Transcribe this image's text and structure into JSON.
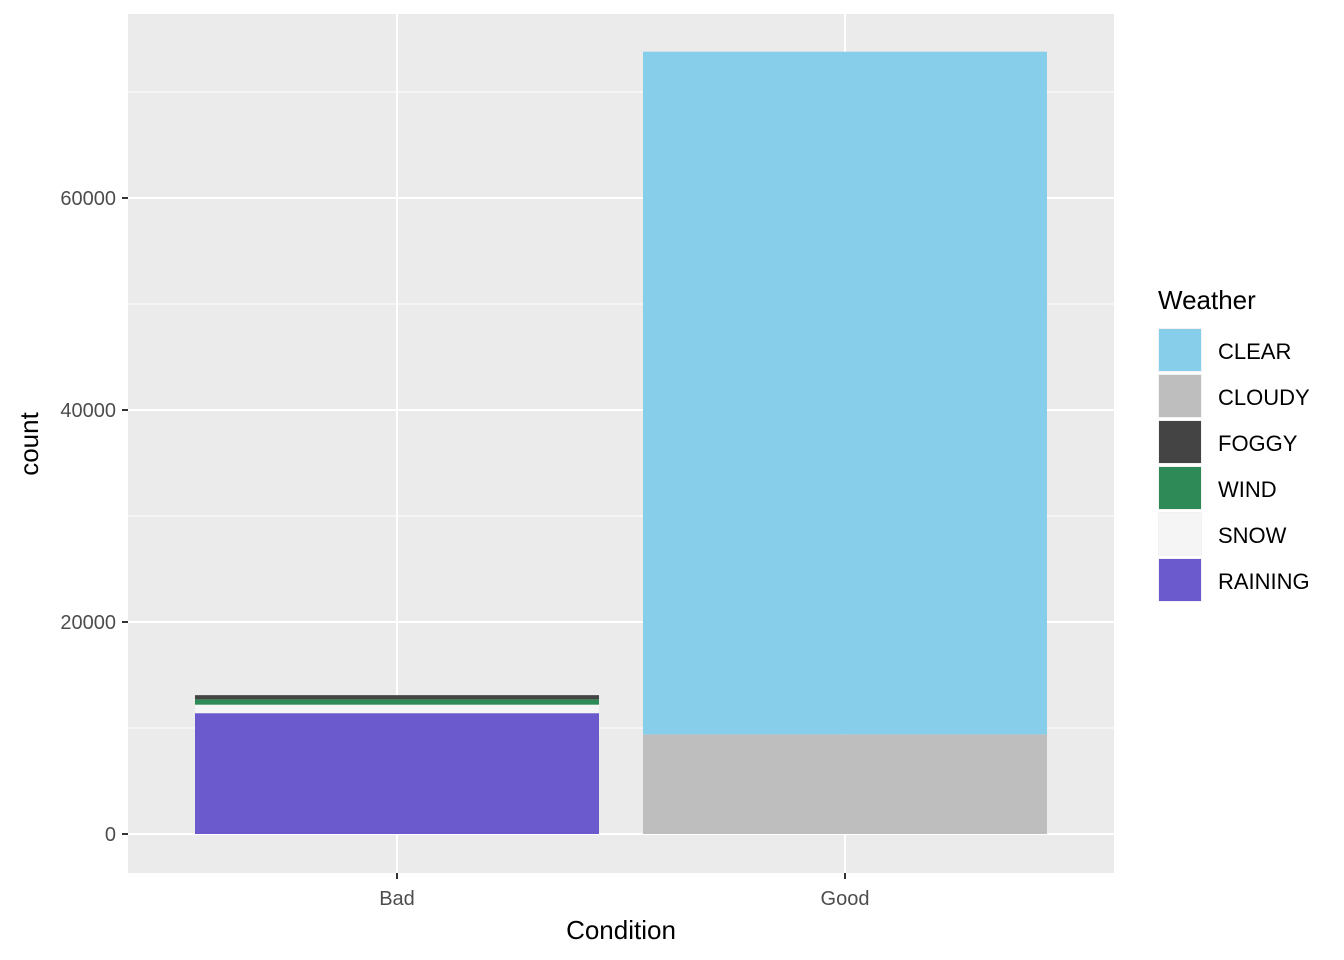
{
  "chart_data": {
    "type": "bar",
    "stacked": true,
    "categories": [
      "Bad",
      "Good"
    ],
    "xlabel": "Condition",
    "ylabel": "count",
    "ylim": [
      0,
      70000
    ],
    "yticks": [
      0,
      20000,
      40000,
      60000
    ],
    "grid": true,
    "legend": {
      "title": "Weather",
      "placement": "right"
    },
    "series": [
      {
        "name": "CLEAR",
        "color": "#87CEEB",
        "values": [
          0,
          64400
        ]
      },
      {
        "name": "CLOUDY",
        "color": "#BEBEBE",
        "values": [
          0,
          9400
        ]
      },
      {
        "name": "FOGGY",
        "color": "#444444",
        "values": [
          400,
          0
        ]
      },
      {
        "name": "WIND",
        "color": "#2E8B57",
        "values": [
          500,
          0
        ]
      },
      {
        "name": "SNOW",
        "color": "#F5F5F5",
        "values": [
          800,
          0
        ]
      },
      {
        "name": "RAINING",
        "color": "#6A5ACD",
        "values": [
          11400,
          0
        ]
      }
    ],
    "colors": {
      "panel": "#EBEBEB",
      "grid": "#FFFFFF"
    }
  }
}
